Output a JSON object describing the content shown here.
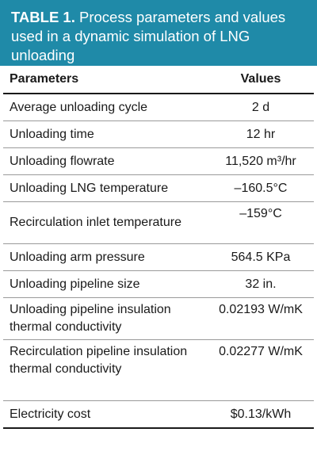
{
  "caption": {
    "label": "TABLE 1.",
    "text": "Process parameters and values used in a dynamic simulation of LNG unloading"
  },
  "table": {
    "headers": [
      "Parameters",
      "Values"
    ],
    "rows": [
      {
        "parameter": "Average unloading cycle",
        "value": "2 d"
      },
      {
        "parameter": "Unloading time",
        "value": "12 hr"
      },
      {
        "parameter": "Unloading flowrate",
        "value": "11,520 m³/hr"
      },
      {
        "parameter": "Unloading LNG temperature",
        "value": "–160.5°C"
      },
      {
        "parameter": "Recirculation inlet temperature",
        "value": "–159°C"
      },
      {
        "parameter": "Unloading arm pressure",
        "value": "564.5 KPa"
      },
      {
        "parameter": "Unloading pipeline size",
        "value": "32 in."
      },
      {
        "parameter": "Unloading pipeline insulation thermal conductivity",
        "value": "0.02193 W/mK"
      },
      {
        "parameter": "Recirculation pipeline insulation thermal conductivity",
        "value": "0.02277 W/mK"
      },
      {
        "parameter": "Electricity cost",
        "value": "$0.13/kWh"
      }
    ]
  },
  "colors": {
    "caption_background": "#1f8aa8",
    "caption_text": "#ffffff"
  }
}
